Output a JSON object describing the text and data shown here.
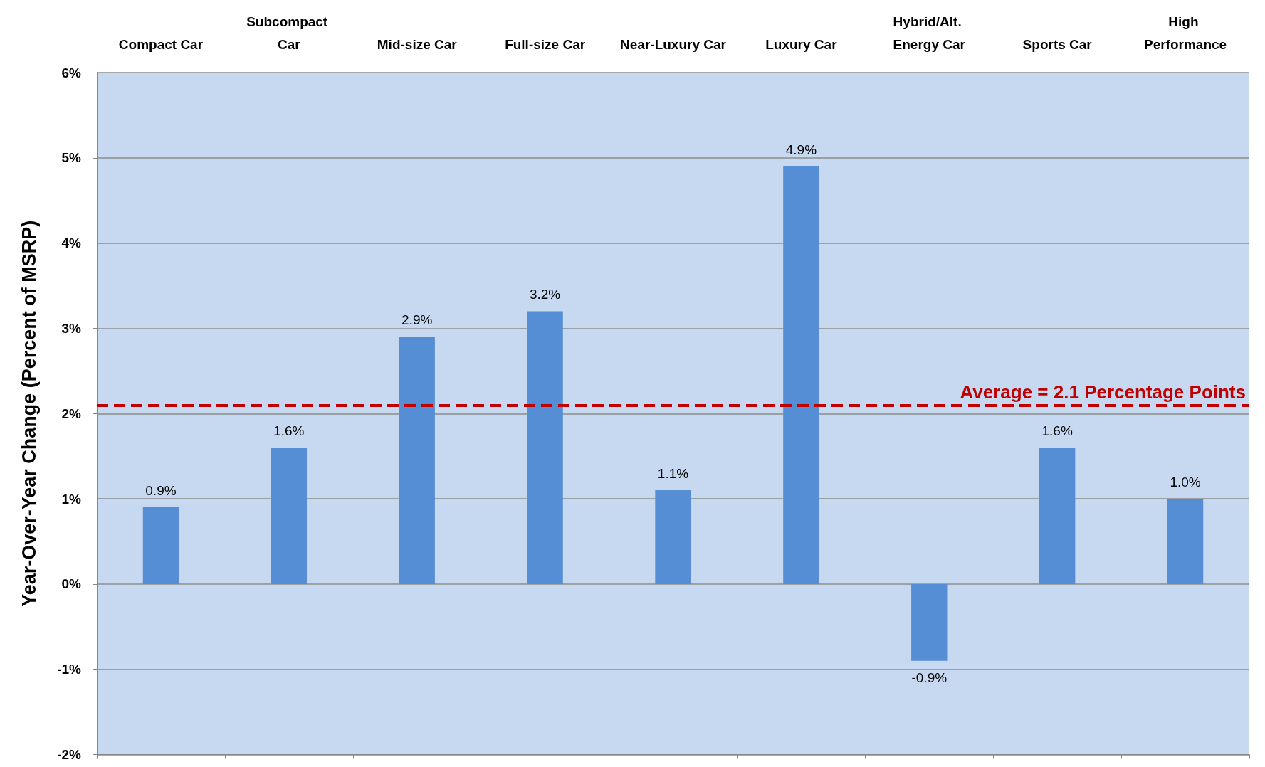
{
  "chart_data": {
    "type": "bar",
    "ylabel": "Year-Over-Year Change (Percent of MSRP)",
    "categories": [
      "Compact Car",
      "Subcompact Car",
      "Mid-size Car",
      "Full-size Car",
      "Near-Luxury Car",
      "Luxury Car",
      "Hybrid/Alt. Energy Car",
      "Sports Car",
      "High Performance"
    ],
    "values": [
      0.9,
      1.6,
      2.9,
      3.2,
      1.1,
      4.9,
      -0.9,
      1.6,
      1.0
    ],
    "value_labels": [
      "0.9%",
      "1.6%",
      "2.9%",
      "3.2%",
      "1.1%",
      "4.9%",
      "-0.9%",
      "1.6%",
      "1.0%"
    ],
    "color": "#558ed5",
    "ylim": [
      -2,
      6
    ],
    "yticks": [
      {
        "value": -2,
        "label": "-2%"
      },
      {
        "value": -1,
        "label": "-1%"
      },
      {
        "value": 0,
        "label": "0%"
      },
      {
        "value": 1,
        "label": "1%"
      },
      {
        "value": 2,
        "label": "2%"
      },
      {
        "value": 3,
        "label": "3%"
      },
      {
        "value": 4,
        "label": "4%"
      },
      {
        "value": 5,
        "label": "5%"
      },
      {
        "value": 6,
        "label": "6%"
      }
    ],
    "grid": "y",
    "ref_lines": [
      {
        "axis": "y",
        "value": 2.1,
        "label": "Average = 2.1 Percentage Points",
        "color": "#c00000",
        "line_style": "dashed"
      }
    ]
  }
}
